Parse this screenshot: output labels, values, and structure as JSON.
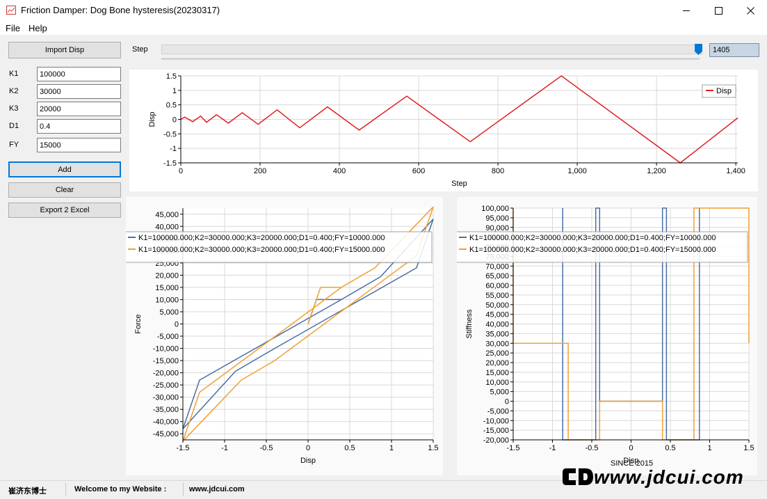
{
  "window": {
    "title": "Friction Damper: Dog Bone hysteresis(20230317)"
  },
  "menu": {
    "file": "File",
    "help": "Help"
  },
  "sidebar": {
    "import_label": "Import Disp",
    "params": [
      {
        "label": "K1",
        "value": "100000"
      },
      {
        "label": "K2",
        "value": "30000"
      },
      {
        "label": "K3",
        "value": "20000"
      },
      {
        "label": "D1",
        "value": "0.4"
      },
      {
        "label": "FY",
        "value": "15000"
      }
    ],
    "add_label": "Add",
    "clear_label": "Clear",
    "export_label": "Export 2 Excel"
  },
  "step": {
    "label": "Step",
    "value": "1405",
    "max": 1405,
    "current": 1405
  },
  "status": {
    "name": "崔济东博士",
    "welcome": "Welcome to my Website :",
    "site": "www.jdcui.com",
    "brand": "www.jdcui.com",
    "since": "SINCE 2015"
  },
  "colors": {
    "series1": "#4a6fa5",
    "series2": "#f0a030",
    "disp": "#e02020",
    "accent": "#0078d7"
  },
  "icons": {
    "app": "app-chart-icon",
    "minimize": "minimize-icon",
    "maximize": "maximize-icon",
    "close": "close-icon",
    "slider": "slider-thumb-icon"
  },
  "chart_data": [
    {
      "type": "line",
      "xlabel": "Step",
      "ylabel": "Disp",
      "xlim": [
        0,
        1405
      ],
      "ylim": [
        -1.5,
        1.5
      ],
      "xticks": [
        "0",
        "200",
        "400",
        "600",
        "800",
        "1,000",
        "1,200",
        "1,400"
      ],
      "yticks": [
        "1.5",
        "1",
        "0.5",
        "0",
        "-0.5",
        "-1",
        "-1.5"
      ],
      "grid": true,
      "legend": "top-right",
      "series": [
        {
          "name": "Disp",
          "x": [
            0,
            10,
            30,
            50,
            65,
            90,
            120,
            155,
            195,
            243,
            300,
            370,
            450,
            570,
            730,
            960,
            1260,
            1405
          ],
          "y": [
            0,
            0.08,
            -0.08,
            0.11,
            -0.1,
            0.16,
            -0.13,
            0.23,
            -0.17,
            0.33,
            -0.29,
            0.43,
            -0.37,
            0.8,
            -0.77,
            1.5,
            -1.5,
            0.05
          ]
        }
      ]
    },
    {
      "type": "line",
      "xlabel": "Disp",
      "ylabel": "Force",
      "xlim": [
        -1.5,
        1.5
      ],
      "ylim": [
        -47500,
        47500
      ],
      "xticks": [
        "-1.5",
        "-1",
        "-0.5",
        "0",
        "0.5",
        "1",
        "1.5"
      ],
      "yticks": [
        "45,000",
        "40,000",
        "35,000",
        "30,000",
        "25,000",
        "20,000",
        "15,000",
        "10,000",
        "5,000",
        "0",
        "-5,000",
        "-10,000",
        "-15,000",
        "-20,000",
        "-25,000",
        "-30,000",
        "-35,000",
        "-40,000",
        "-45,000"
      ],
      "grid": true,
      "legend": "top-left",
      "series": [
        {
          "name": "K1=100000.000;K2=30000.000;K3=20000.000;D1=0.400;FY=10000.000",
          "x": [
            0,
            0.1,
            0.4,
            0.87,
            1.5,
            1.3,
            -0.4,
            -0.87,
            -1.5,
            -1.3,
            0.4,
            0.87
          ],
          "y": [
            0,
            10000,
            10000,
            19400,
            43000,
            23000,
            -10000,
            -19400,
            -43000,
            -23000,
            10000,
            19400
          ]
        },
        {
          "name": "K1=100000.000;K2=30000.000;K3=20000.000;D1=0.400;FY=15000.000",
          "x": [
            0,
            0.15,
            0.4,
            0.8,
            1.5,
            1.3,
            -0.4,
            -0.8,
            -1.5,
            -1.3,
            0.4,
            0.8
          ],
          "y": [
            0,
            15000,
            15000,
            23000,
            48000,
            28000,
            -15000,
            -23000,
            -48000,
            -28000,
            15000,
            23000
          ]
        }
      ]
    },
    {
      "type": "line",
      "xlabel": "Disp",
      "ylabel": "Stiffness",
      "xlim": [
        -1.5,
        1.5
      ],
      "ylim": [
        -20000,
        100000
      ],
      "xticks": [
        "-1.5",
        "-1",
        "-0.5",
        "0",
        "0.5",
        "1",
        "1.5"
      ],
      "yticks": [
        "100,000",
        "95,000",
        "90,000",
        "85,000",
        "80,000",
        "75,000",
        "70,000",
        "65,000",
        "60,000",
        "55,000",
        "50,000",
        "45,000",
        "40,000",
        "35,000",
        "30,000",
        "25,000",
        "20,000",
        "15,000",
        "10,000",
        "5,000",
        "0",
        "-5,000",
        "-10,000",
        "-15,000",
        "-20,000"
      ],
      "grid": true,
      "legend": "top-left",
      "series": [
        {
          "name": "K1=100000.000;K2=30000.000;K3=20000.000;D1=0.400;FY=10000.000",
          "x": [
            -0.87,
            -0.87,
            -0.45,
            -0.45,
            -0.4,
            -0.4,
            0.4,
            0.4,
            0.45,
            0.45,
            0.87,
            0.87
          ],
          "y": [
            100000,
            -20000,
            -20000,
            100000,
            100000,
            0,
            0,
            100000,
            100000,
            -20000,
            -20000,
            100000
          ]
        },
        {
          "name": "K1=100000.000;K2=30000.000;K3=20000.000;D1=0.400;FY=15000.000",
          "x": [
            -1.5,
            -1.5,
            -1.5,
            -0.8,
            -0.8,
            -0.4,
            -0.4,
            0.4,
            0.4,
            0.8,
            0.8,
            1.5,
            1.5
          ],
          "y": [
            100000,
            30000,
            30000,
            30000,
            -20000,
            -20000,
            0,
            0,
            -20000,
            -20000,
            100000,
            100000,
            30000
          ]
        }
      ]
    }
  ]
}
